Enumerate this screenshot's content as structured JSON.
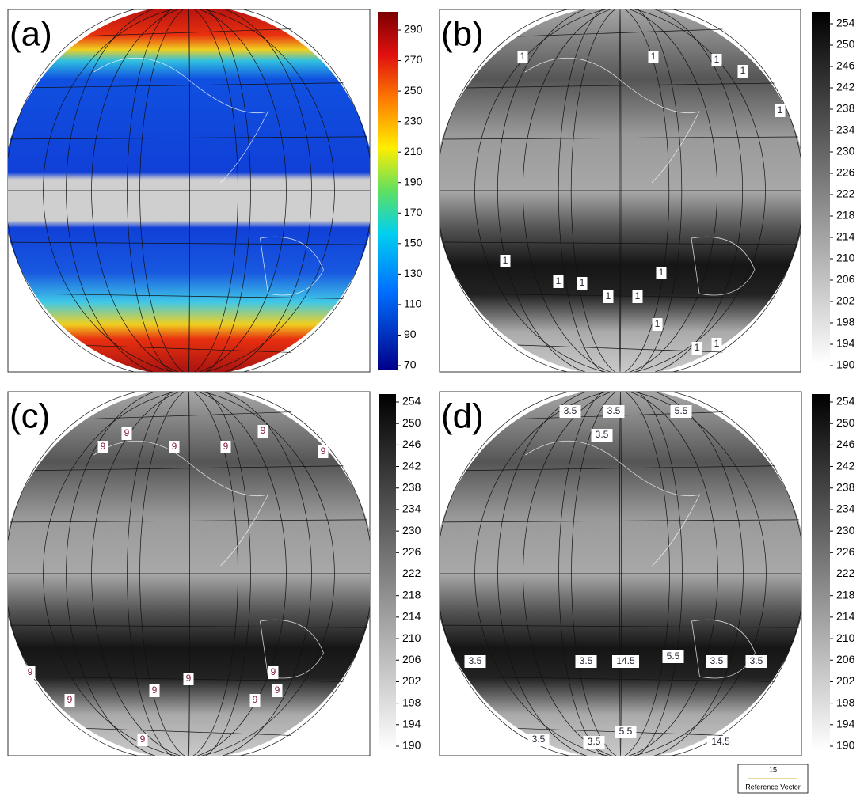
{
  "panels": [
    {
      "label": "(a)",
      "colorbar_ticks": [
        290,
        270,
        250,
        230,
        210,
        190,
        170,
        150,
        130,
        110,
        90,
        70
      ],
      "contour_labels": []
    },
    {
      "label": "(b)",
      "colorbar_ticks": [
        254,
        250,
        246,
        242,
        238,
        234,
        230,
        226,
        222,
        218,
        214,
        210,
        206,
        202,
        198,
        194,
        190
      ],
      "contour_labels": [
        "1",
        "1",
        "1",
        "1",
        "1",
        "1",
        "1",
        "1",
        "1",
        "1",
        "1",
        "1",
        "1",
        "1"
      ]
    },
    {
      "label": "(c)",
      "colorbar_ticks": [
        254,
        250,
        246,
        242,
        238,
        234,
        230,
        226,
        222,
        218,
        214,
        210,
        206,
        202,
        198,
        194,
        190
      ],
      "contour_labels": [
        "9",
        "9",
        "9",
        "9",
        "9",
        "9",
        "9",
        "9",
        "9",
        "9",
        "9",
        "9",
        "9",
        "9"
      ]
    },
    {
      "label": "(d)",
      "colorbar_ticks": [
        254,
        250,
        246,
        242,
        238,
        234,
        230,
        226,
        222,
        218,
        214,
        210,
        206,
        202,
        198,
        194,
        190
      ],
      "contour_labels": [
        "3.5",
        "3.5",
        "5.5",
        "3.5",
        "3.5",
        "3.5",
        "14.5",
        "5.5",
        "3.5",
        "3.5",
        "3.5",
        "3.5",
        "5.5",
        "14.5"
      ]
    }
  ],
  "reference_vector": {
    "value": "15",
    "label": "Reference Vector"
  }
}
